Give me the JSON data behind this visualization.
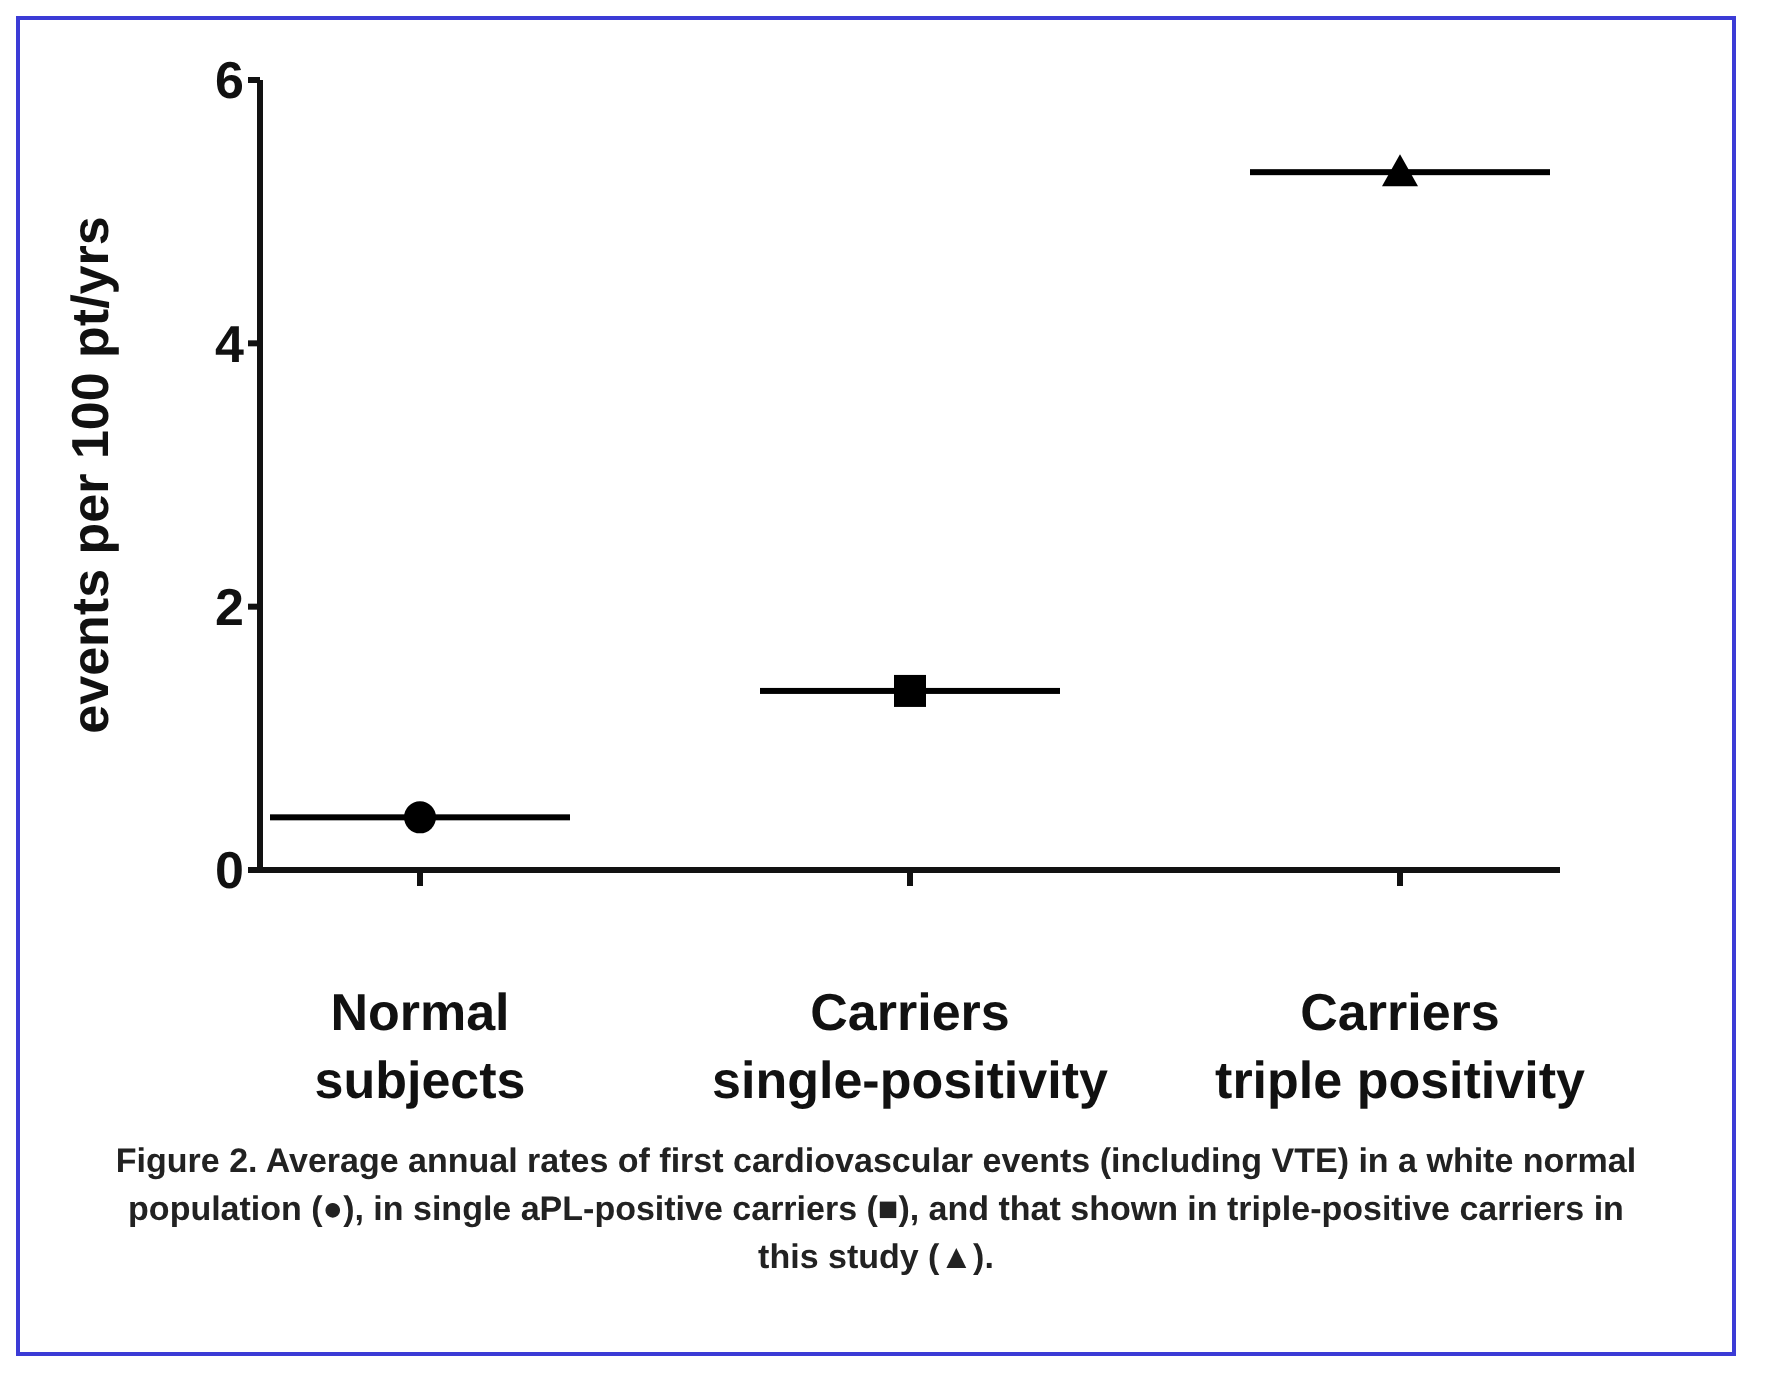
{
  "chart_data": {
    "type": "scatter",
    "ylabel": "events per 100 pt/yrs",
    "categories": [
      "Normal subjects",
      "Carriers single-positivity",
      "Carriers triple positivity"
    ],
    "series": [
      {
        "marker": "circle",
        "color": "#000000",
        "values": [
          0.4,
          null,
          null
        ]
      },
      {
        "marker": "square",
        "color": "#000000",
        "values": [
          null,
          1.36,
          null
        ]
      },
      {
        "marker": "triangle",
        "color": "#000000",
        "values": [
          null,
          null,
          5.3
        ]
      }
    ],
    "ylim": [
      0,
      6
    ],
    "yticks": [
      0,
      2,
      4,
      6
    ],
    "grid": false,
    "legend": false,
    "annotations": [
      "Figure 2. Average annual rates of first cardiovascular events (including VTE) in a white normal population (●), in single aPL-positive carriers (■), and that shown in triple-positive carriers in this study (▲)."
    ]
  }
}
